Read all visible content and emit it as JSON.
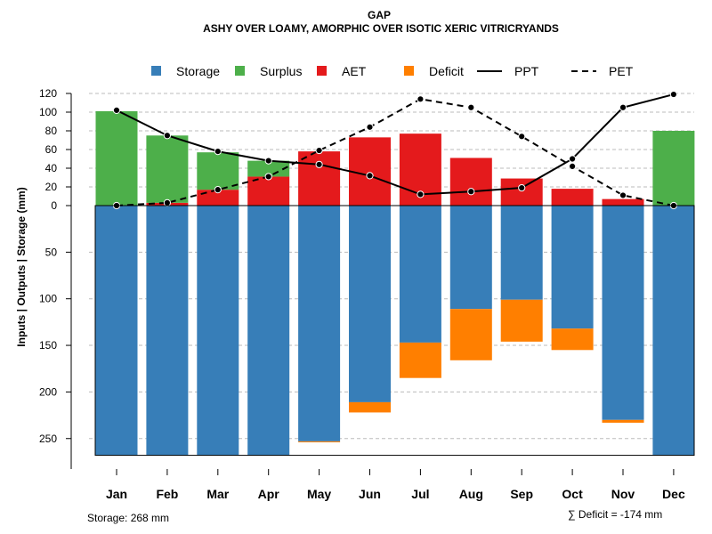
{
  "chart_data": {
    "type": "bar",
    "title": "GAP",
    "subtitle": "ASHY OVER LOAMY, AMORPHIC OVER ISOTIC XERIC VITRICRYANDS",
    "ylabel": "Inputs | Outputs | Storage    (mm)",
    "categories": [
      "Jan",
      "Feb",
      "Mar",
      "Apr",
      "May",
      "Jun",
      "Jul",
      "Aug",
      "Sep",
      "Oct",
      "Nov",
      "Dec"
    ],
    "upper_ticks": [
      "120",
      "100",
      "80",
      "60",
      "40",
      "20",
      "0"
    ],
    "upper_tick_values": [
      120,
      100,
      80,
      60,
      40,
      20,
      0
    ],
    "lower_ticks": [
      "50",
      "100",
      "150",
      "200",
      "250"
    ],
    "lower_tick_values": [
      50,
      100,
      150,
      200,
      250
    ],
    "ylim_upper": [
      0,
      120
    ],
    "ylim_lower": [
      0,
      268
    ],
    "legend": [
      {
        "key": "storage",
        "label": "Storage",
        "kind": "box",
        "color": "#377EB8"
      },
      {
        "key": "surplus",
        "label": "Surplus",
        "kind": "box",
        "color": "#4DAF4A"
      },
      {
        "key": "aet",
        "label": "AET",
        "kind": "box",
        "color": "#E41A1C"
      },
      {
        "key": "deficit",
        "label": "Deficit",
        "kind": "box",
        "color": "#FF7F00"
      },
      {
        "key": "ppt",
        "label": "PPT",
        "kind": "solid",
        "color": "#000000"
      },
      {
        "key": "pet",
        "label": "PET",
        "kind": "dashed",
        "color": "#000000"
      }
    ],
    "series": [
      {
        "name": "AET",
        "values": [
          0,
          3,
          17,
          31,
          58,
          73,
          77,
          51,
          29,
          18,
          7,
          0
        ]
      },
      {
        "name": "Surplus",
        "values": [
          101,
          72,
          40,
          17,
          0,
          0,
          0,
          0,
          0,
          0,
          0,
          80
        ]
      },
      {
        "name": "Storage",
        "values": [
          268,
          268,
          268,
          268,
          253,
          211,
          147,
          111,
          101,
          132,
          230,
          268
        ]
      },
      {
        "name": "Deficit",
        "values": [
          0,
          0,
          0,
          0,
          1,
          11,
          38,
          55,
          45,
          23,
          3,
          0
        ]
      },
      {
        "name": "PPT",
        "values": [
          102,
          75,
          58,
          48,
          44,
          32,
          12,
          15,
          19,
          50,
          105,
          119
        ]
      },
      {
        "name": "PET",
        "values": [
          0,
          3,
          17,
          31,
          59,
          84,
          114,
          105,
          74,
          42,
          11,
          0
        ]
      }
    ],
    "colors": {
      "storage": "#377EB8",
      "surplus": "#4DAF4A",
      "aet": "#E41A1C",
      "deficit": "#FF7F00",
      "line": "#000000",
      "grid": "#BBBBBB"
    }
  },
  "footer": {
    "storage_note": "Storage: 268 mm",
    "deficit_note": "∑ Deficit = -174 mm"
  }
}
